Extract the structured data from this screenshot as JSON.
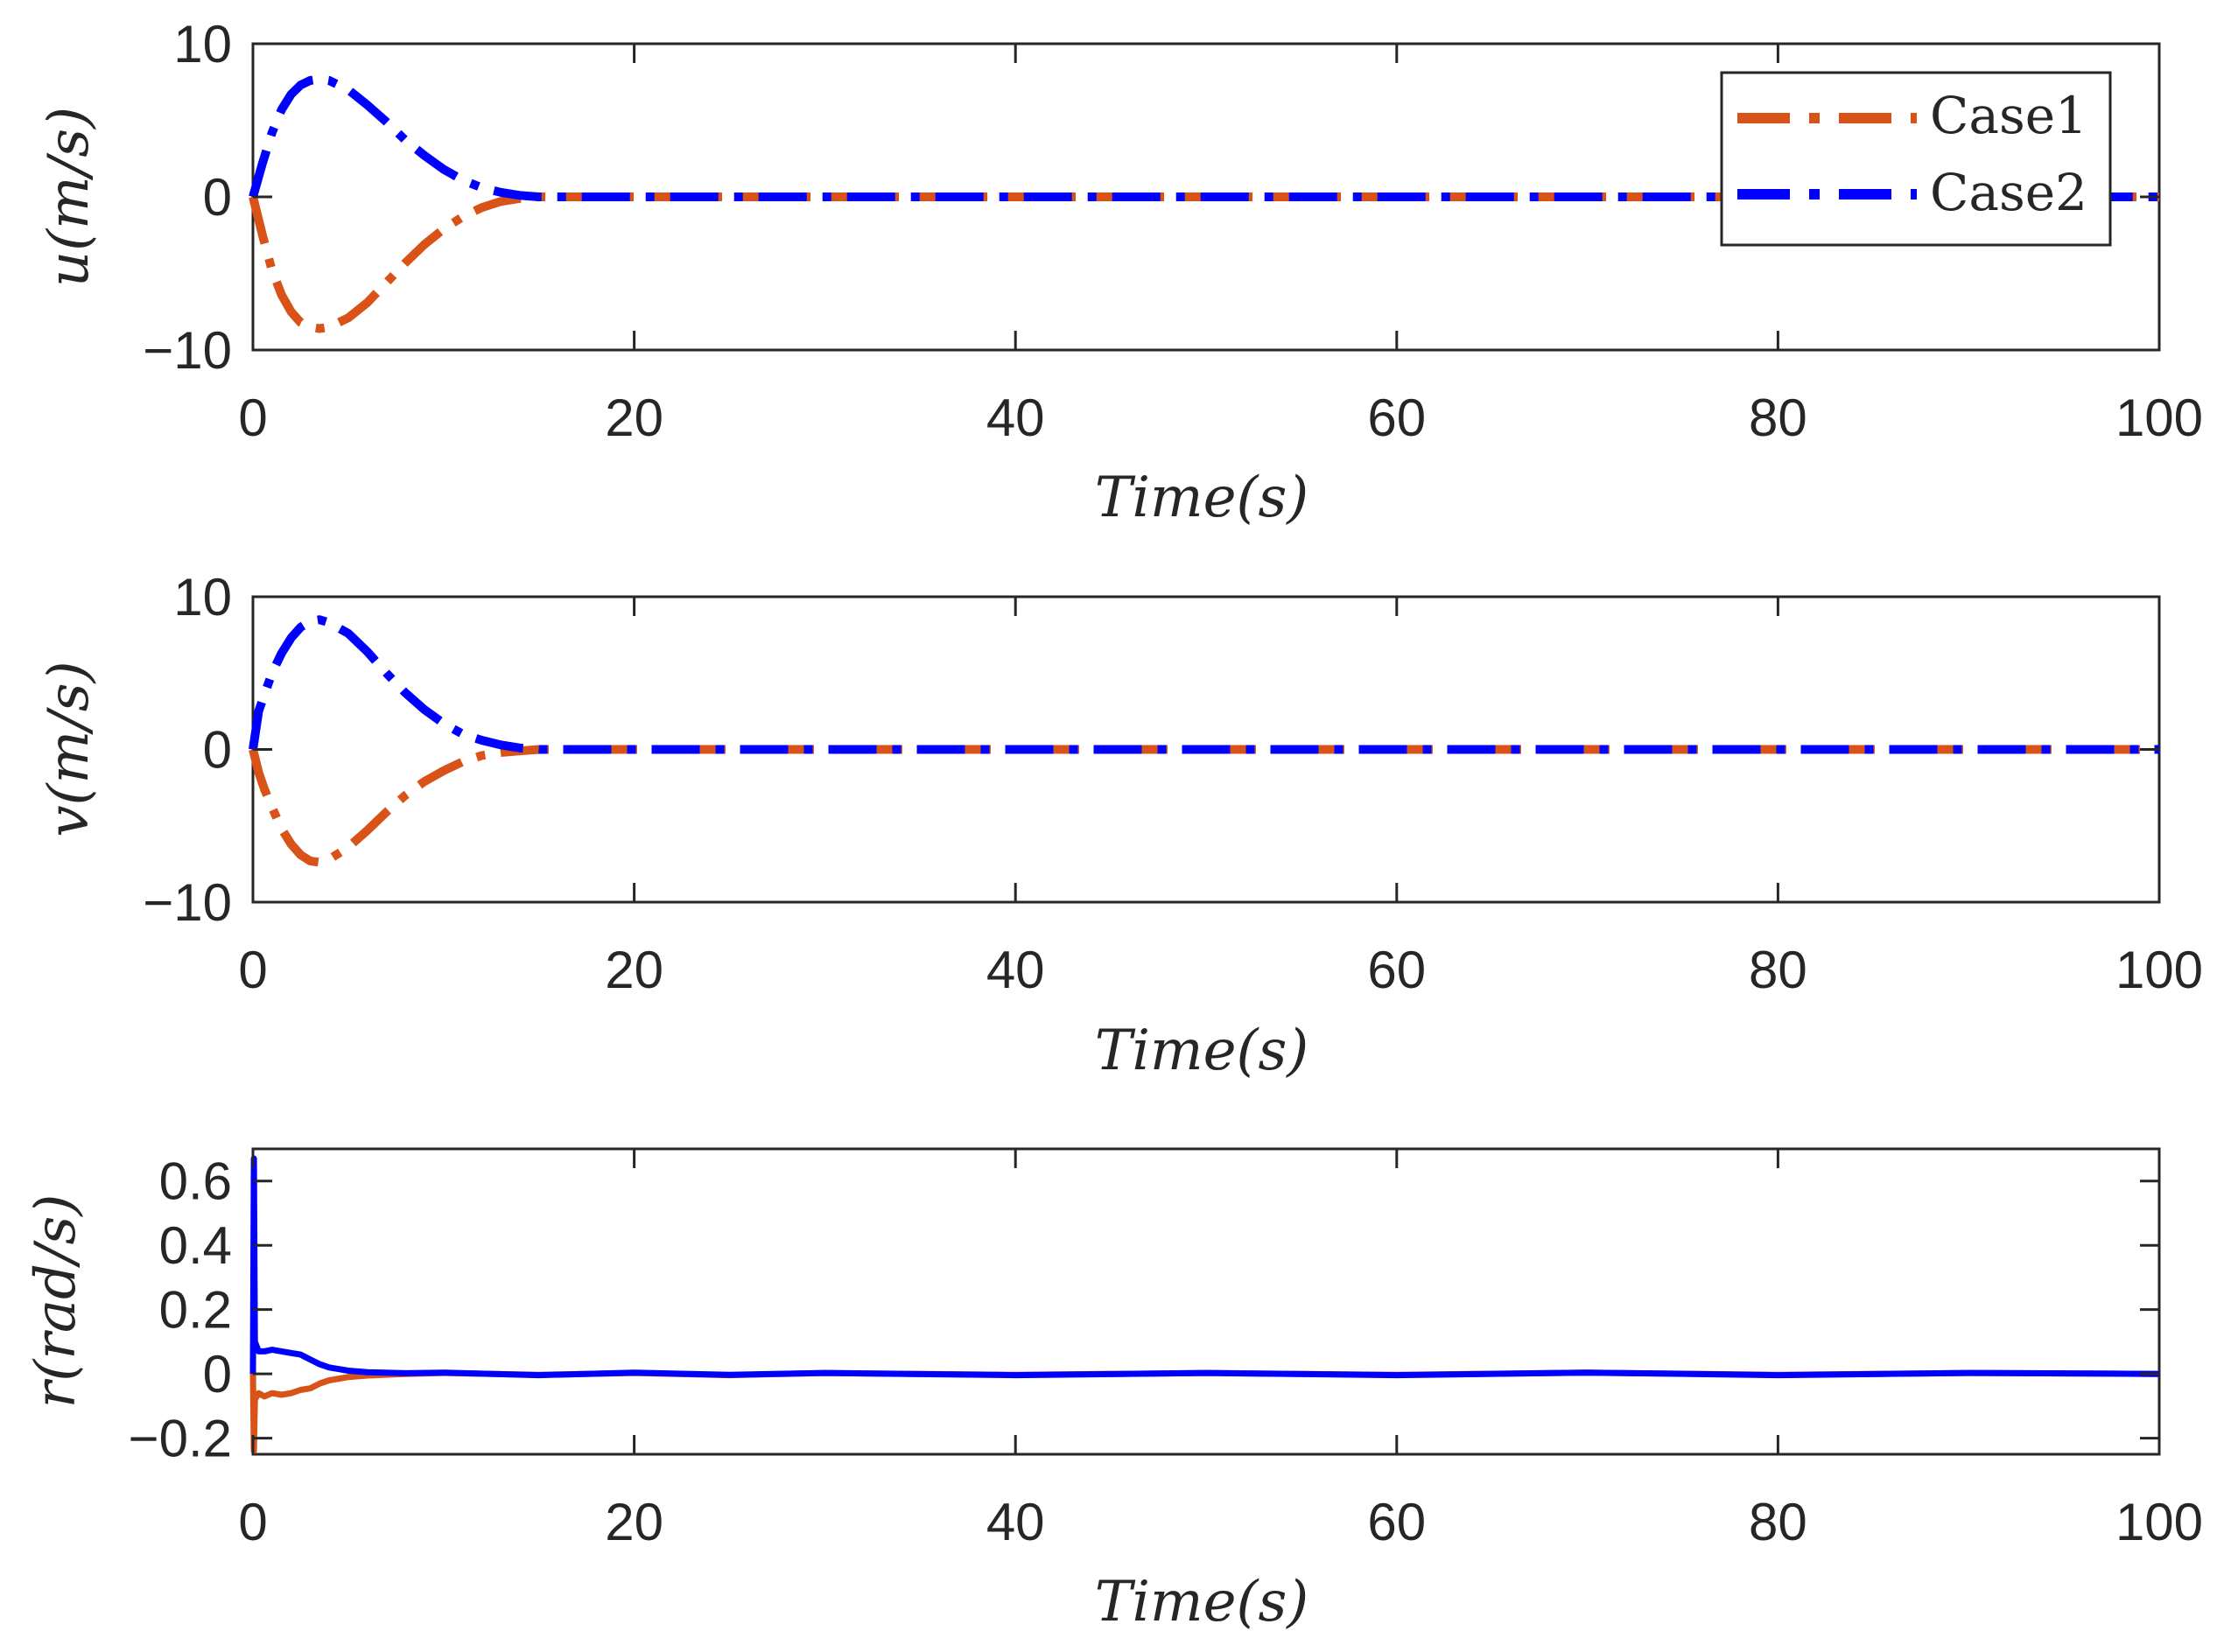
{
  "colors": {
    "case1": "#D95319",
    "case2": "#0000FF",
    "axis": "#262626"
  },
  "legend": {
    "location": "top-right of first panel",
    "entries": [
      {
        "label": "Case1",
        "color": "#D95319"
      },
      {
        "label": "Case2",
        "color": "#0000FF"
      }
    ]
  },
  "chart_data": [
    {
      "type": "line",
      "title": "",
      "xlabel": "Time(s)",
      "ylabel": "u(m/s)",
      "xlim": [
        0,
        100
      ],
      "ylim": [
        -10,
        10
      ],
      "xticks": [
        0,
        20,
        40,
        60,
        80,
        100
      ],
      "xtick_labels": [
        "0",
        "20",
        "40",
        "60",
        "80",
        "100"
      ],
      "yticks": [
        10,
        0,
        -10
      ],
      "ytick_labels": [
        "10",
        "0",
        "−10"
      ],
      "grid": false,
      "series": [
        {
          "name": "Case1",
          "color": "#D95319",
          "x": [
            0,
            0.5,
            1,
            1.5,
            2,
            2.5,
            3,
            3.5,
            4,
            5,
            6,
            7,
            8,
            9,
            10,
            11,
            12,
            13,
            14,
            15,
            20,
            40,
            60,
            80,
            100
          ],
          "y": [
            0,
            -2.5,
            -4.8,
            -6.4,
            -7.5,
            -8.2,
            -8.5,
            -8.6,
            -8.5,
            -7.9,
            -6.9,
            -5.6,
            -4.3,
            -3.1,
            -2.1,
            -1.3,
            -0.7,
            -0.3,
            -0.1,
            0,
            0,
            0,
            0,
            0,
            0
          ]
        },
        {
          "name": "Case2",
          "color": "#0000FF",
          "x": [
            0,
            0.5,
            1,
            1.5,
            2,
            2.5,
            3,
            3.5,
            4,
            5,
            6,
            7,
            8,
            9,
            10,
            11,
            12,
            13,
            14,
            15,
            20,
            40,
            60,
            80,
            100
          ],
          "y": [
            0,
            2.2,
            4.2,
            5.7,
            6.7,
            7.3,
            7.6,
            7.7,
            7.6,
            7.0,
            6.0,
            4.9,
            3.7,
            2.7,
            1.8,
            1.1,
            0.6,
            0.3,
            0.1,
            0,
            0,
            0,
            0,
            0,
            0
          ]
        }
      ]
    },
    {
      "type": "line",
      "title": "",
      "xlabel": "Time(s)",
      "ylabel": "v(m/s)",
      "xlim": [
        0,
        100
      ],
      "ylim": [
        -10,
        10
      ],
      "xticks": [
        0,
        20,
        40,
        60,
        80,
        100
      ],
      "xtick_labels": [
        "0",
        "20",
        "40",
        "60",
        "80",
        "100"
      ],
      "yticks": [
        10,
        0,
        -10
      ],
      "ytick_labels": [
        "10",
        "0",
        "−10"
      ],
      "grid": false,
      "series": [
        {
          "name": "Case1",
          "color": "#D95319",
          "x": [
            0,
            0.3,
            0.6,
            1,
            1.5,
            2,
            2.5,
            3,
            3.5,
            4,
            5,
            6,
            7,
            8,
            9,
            10,
            11,
            12,
            13,
            14,
            15,
            20,
            40,
            60,
            80,
            100
          ],
          "y": [
            0,
            -1.5,
            -2.6,
            -3.8,
            -5.2,
            -6.2,
            -6.9,
            -7.3,
            -7.4,
            -7.2,
            -6.4,
            -5.3,
            -4.1,
            -3.0,
            -2.1,
            -1.4,
            -0.8,
            -0.4,
            -0.2,
            -0.1,
            0,
            0,
            0,
            0,
            0,
            0
          ]
        },
        {
          "name": "Case2",
          "color": "#0000FF",
          "x": [
            0,
            0.3,
            0.6,
            1,
            1.5,
            2,
            2.5,
            3,
            3.5,
            4,
            5,
            6,
            7,
            8,
            9,
            10,
            11,
            12,
            13,
            14,
            15,
            20,
            40,
            60,
            80,
            100
          ],
          "y": [
            0,
            2.5,
            3.6,
            5.0,
            6.3,
            7.3,
            8.0,
            8.4,
            8.5,
            8.3,
            7.6,
            6.4,
            5.0,
            3.7,
            2.6,
            1.7,
            1.0,
            0.6,
            0.3,
            0.1,
            0,
            0,
            0,
            0,
            0,
            0
          ]
        }
      ]
    },
    {
      "type": "line",
      "title": "",
      "xlabel": "Time(s)",
      "ylabel": "r(rad/s)",
      "xlim": [
        0,
        100
      ],
      "ylim": [
        -0.25,
        0.7
      ],
      "xticks": [
        0,
        20,
        40,
        60,
        80,
        100
      ],
      "xtick_labels": [
        "0",
        "20",
        "40",
        "60",
        "80",
        "100"
      ],
      "yticks": [
        0.6,
        0.4,
        0.2,
        0,
        -0.2
      ],
      "ytick_labels": [
        "0.6",
        "0.4",
        "0.2",
        "0",
        "−0.2"
      ],
      "grid": false,
      "series": [
        {
          "name": "Case1",
          "color": "#D95319",
          "x": [
            0,
            0.05,
            0.1,
            0.3,
            0.6,
            1,
            1.5,
            2,
            2.5,
            3,
            3.5,
            4,
            5,
            6,
            8,
            10,
            15,
            20,
            25,
            30,
            40,
            50,
            60,
            70,
            80,
            90,
            100
          ],
          "y": [
            0,
            -0.24,
            -0.08,
            -0.06,
            -0.07,
            -0.06,
            -0.065,
            -0.06,
            -0.05,
            -0.045,
            -0.03,
            -0.02,
            -0.01,
            -0.005,
            0,
            0.003,
            -0.003,
            0.003,
            -0.004,
            0.003,
            -0.003,
            0.003,
            -0.003,
            0.004,
            -0.003,
            0.003,
            0
          ]
        },
        {
          "name": "Case2",
          "color": "#0000FF",
          "x": [
            0,
            0.05,
            0.1,
            0.3,
            0.6,
            1,
            1.5,
            2,
            2.5,
            3,
            3.5,
            4,
            5,
            6,
            8,
            10,
            15,
            20,
            25,
            30,
            40,
            50,
            60,
            70,
            80,
            90,
            100
          ],
          "y": [
            0,
            0.67,
            0.1,
            0.07,
            0.07,
            0.075,
            0.07,
            0.065,
            0.06,
            0.045,
            0.03,
            0.02,
            0.01,
            0.005,
            0.002,
            0.004,
            -0.004,
            0.004,
            -0.003,
            0.003,
            -0.004,
            0.003,
            -0.004,
            0.004,
            -0.004,
            0.003,
            0
          ]
        }
      ]
    }
  ]
}
